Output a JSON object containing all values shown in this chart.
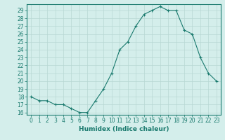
{
  "xlabel": "Humidex (Indice chaleur)",
  "x_values": [
    0,
    1,
    2,
    3,
    4,
    5,
    6,
    7,
    8,
    9,
    10,
    11,
    12,
    13,
    14,
    15,
    16,
    17,
    18,
    19,
    20,
    21,
    22,
    23
  ],
  "y_values": [
    18,
    17.5,
    17.5,
    17,
    17,
    16.5,
    16,
    16,
    17.5,
    19,
    21,
    24,
    25,
    27,
    28.5,
    29,
    29.5,
    29,
    29,
    26.5,
    26,
    23,
    21,
    20
  ],
  "line_color": "#1a7a6e",
  "marker_color": "#1a7a6e",
  "bg_color": "#d4eeeb",
  "grid_color": "#b8d8d4",
  "axis_color": "#1a7a6e",
  "tick_label_color": "#1a7a6e",
  "xlabel_color": "#1a7a6e",
  "ylim": [
    15.7,
    29.8
  ],
  "yticks": [
    16,
    17,
    18,
    19,
    20,
    21,
    22,
    23,
    24,
    25,
    26,
    27,
    28,
    29
  ],
  "xticks": [
    0,
    1,
    2,
    3,
    4,
    5,
    6,
    7,
    8,
    9,
    10,
    11,
    12,
    13,
    14,
    15,
    16,
    17,
    18,
    19,
    20,
    21,
    22,
    23
  ],
  "tick_fontsize": 5.5,
  "xlabel_fontsize": 6.5
}
